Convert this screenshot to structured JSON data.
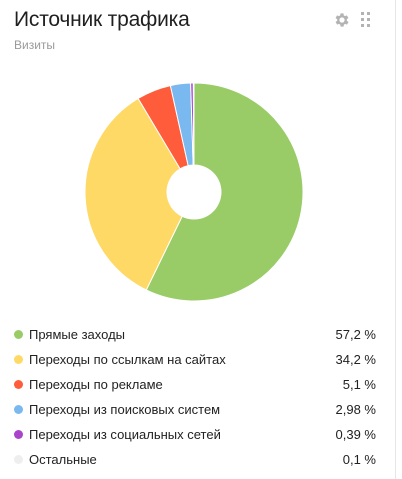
{
  "widget": {
    "title": "Источник трафика",
    "subtitle": "Визиты",
    "settings_icon": "gear-icon",
    "drag_icon": "drag-handle-icon"
  },
  "chart_data": {
    "type": "pie",
    "donut": true,
    "categories": [
      "Прямые заходы",
      "Переходы по ссылкам на сайтах",
      "Переходы по рекламе",
      "Переходы из поисковых систем",
      "Переходы из социальных сетей",
      "Остальные"
    ],
    "values": [
      57.2,
      34.2,
      5.1,
      2.98,
      0.39,
      0.1
    ],
    "value_labels": [
      "57,2 %",
      "34,2 %",
      "5,1 %",
      "2,98 %",
      "0,39 %",
      "0,1 %"
    ],
    "colors": [
      "#99cc66",
      "#ffd966",
      "#ff5c3b",
      "#7ab8f0",
      "#aa44cc",
      "#eeeeee"
    ],
    "legend": "bottom"
  }
}
